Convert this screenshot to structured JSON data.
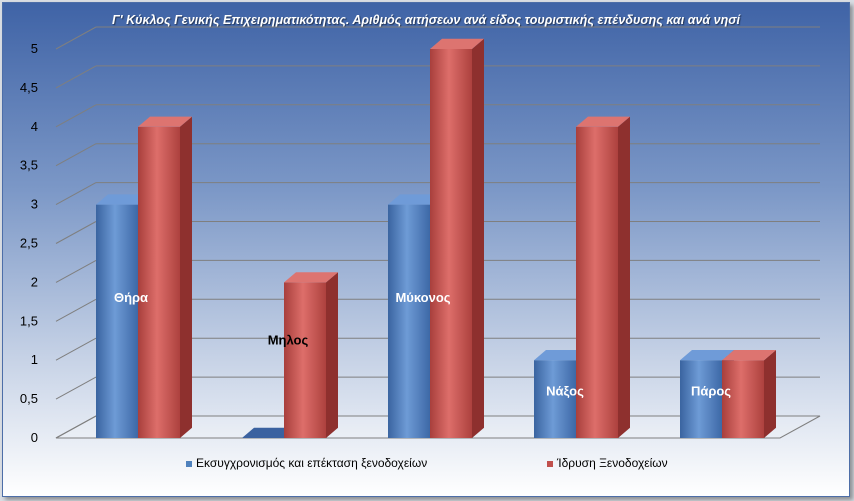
{
  "chart_data": {
    "type": "bar",
    "title": "Γ' Κύκλος Γενικής Επιχειρηματικότητας. Αριθμός αιτήσεων ανά είδος τουριστικής επένδυσης  και ανά νησί",
    "categories": [
      "Θήρα",
      "Μηλος",
      "Μύκονος",
      "Νάξος",
      "Πάρος"
    ],
    "series": [
      {
        "name": "Εκσυγχρονισμός και επέκταση ξενοδοχείων",
        "values": [
          3,
          0,
          3,
          1,
          1
        ],
        "color": "#4f81bd"
      },
      {
        "name": "Ίδρυση Ξενοδοχείων",
        "values": [
          4,
          2,
          5,
          4,
          1
        ],
        "color": "#c0504d"
      }
    ],
    "yticks": [
      "0",
      "0,5",
      "1",
      "1,5",
      "2",
      "2,5",
      "3",
      "3,5",
      "4",
      "4,5",
      "5"
    ],
    "ylim": [
      0,
      5
    ],
    "grid": true,
    "legend": "bottom",
    "category_label_colors": [
      "#ffffff",
      "#000000",
      "#ffffff",
      "#ffffff",
      "#ffffff"
    ]
  }
}
